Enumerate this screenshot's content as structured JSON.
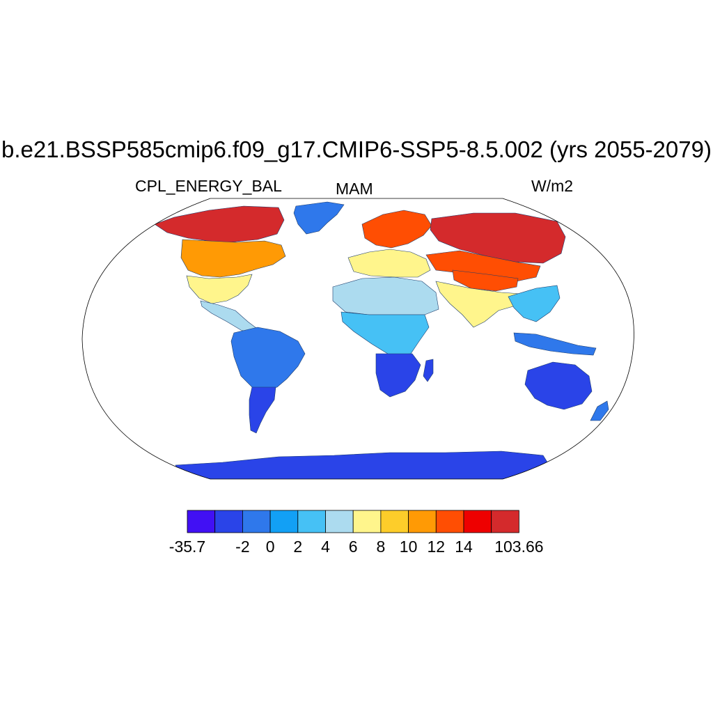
{
  "title": "b.e21.BSSP585cmip6.f09_g17.CMIP6-SSP5-8.5.002 (yrs 2055-2079)",
  "variable": "CPL_ENERGY_BAL",
  "season": "MAM",
  "units": "W/m2",
  "colorbar": {
    "colors": [
      "#4110f4",
      "#2a44e8",
      "#2f78eb",
      "#12a0f5",
      "#46c1f5",
      "#acdbef",
      "#fff58c",
      "#fdcd2a",
      "#ff9a05",
      "#ff4e03",
      "#ee0000",
      "#d42a2c"
    ],
    "labels": [
      "-35.7",
      "-2",
      "0",
      "2",
      "4",
      "6",
      "8",
      "10",
      "12",
      "14",
      "103.66"
    ]
  },
  "map_regions": [
    {
      "name": "greenland",
      "color": "#2f78eb"
    },
    {
      "name": "north-america-arctic",
      "color": "#d42a2c"
    },
    {
      "name": "north-america-mid",
      "color": "#ff9a05"
    },
    {
      "name": "north-america-south",
      "color": "#fff58c"
    },
    {
      "name": "central-america",
      "color": "#acdbef"
    },
    {
      "name": "south-america",
      "color": "#2f78eb"
    },
    {
      "name": "patagonia",
      "color": "#2a44e8"
    },
    {
      "name": "europe",
      "color": "#ff4e03"
    },
    {
      "name": "mediterranean",
      "color": "#fff58c"
    },
    {
      "name": "sahara",
      "color": "#acdbef"
    },
    {
      "name": "tropical-africa",
      "color": "#46c1f5"
    },
    {
      "name": "southern-africa",
      "color": "#2a44e8"
    },
    {
      "name": "madagascar",
      "color": "#2a44e8"
    },
    {
      "name": "siberia",
      "color": "#d42a2c"
    },
    {
      "name": "central-asia",
      "color": "#ff4e03"
    },
    {
      "name": "tibet",
      "color": "#ff4e03"
    },
    {
      "name": "india",
      "color": "#fff58c"
    },
    {
      "name": "southeast-asia",
      "color": "#46c1f5"
    },
    {
      "name": "indonesia",
      "color": "#2f78eb"
    },
    {
      "name": "australia",
      "color": "#2a44e8"
    },
    {
      "name": "new-zealand",
      "color": "#2f78eb"
    },
    {
      "name": "antarctica",
      "color": "#2a44e8"
    }
  ]
}
